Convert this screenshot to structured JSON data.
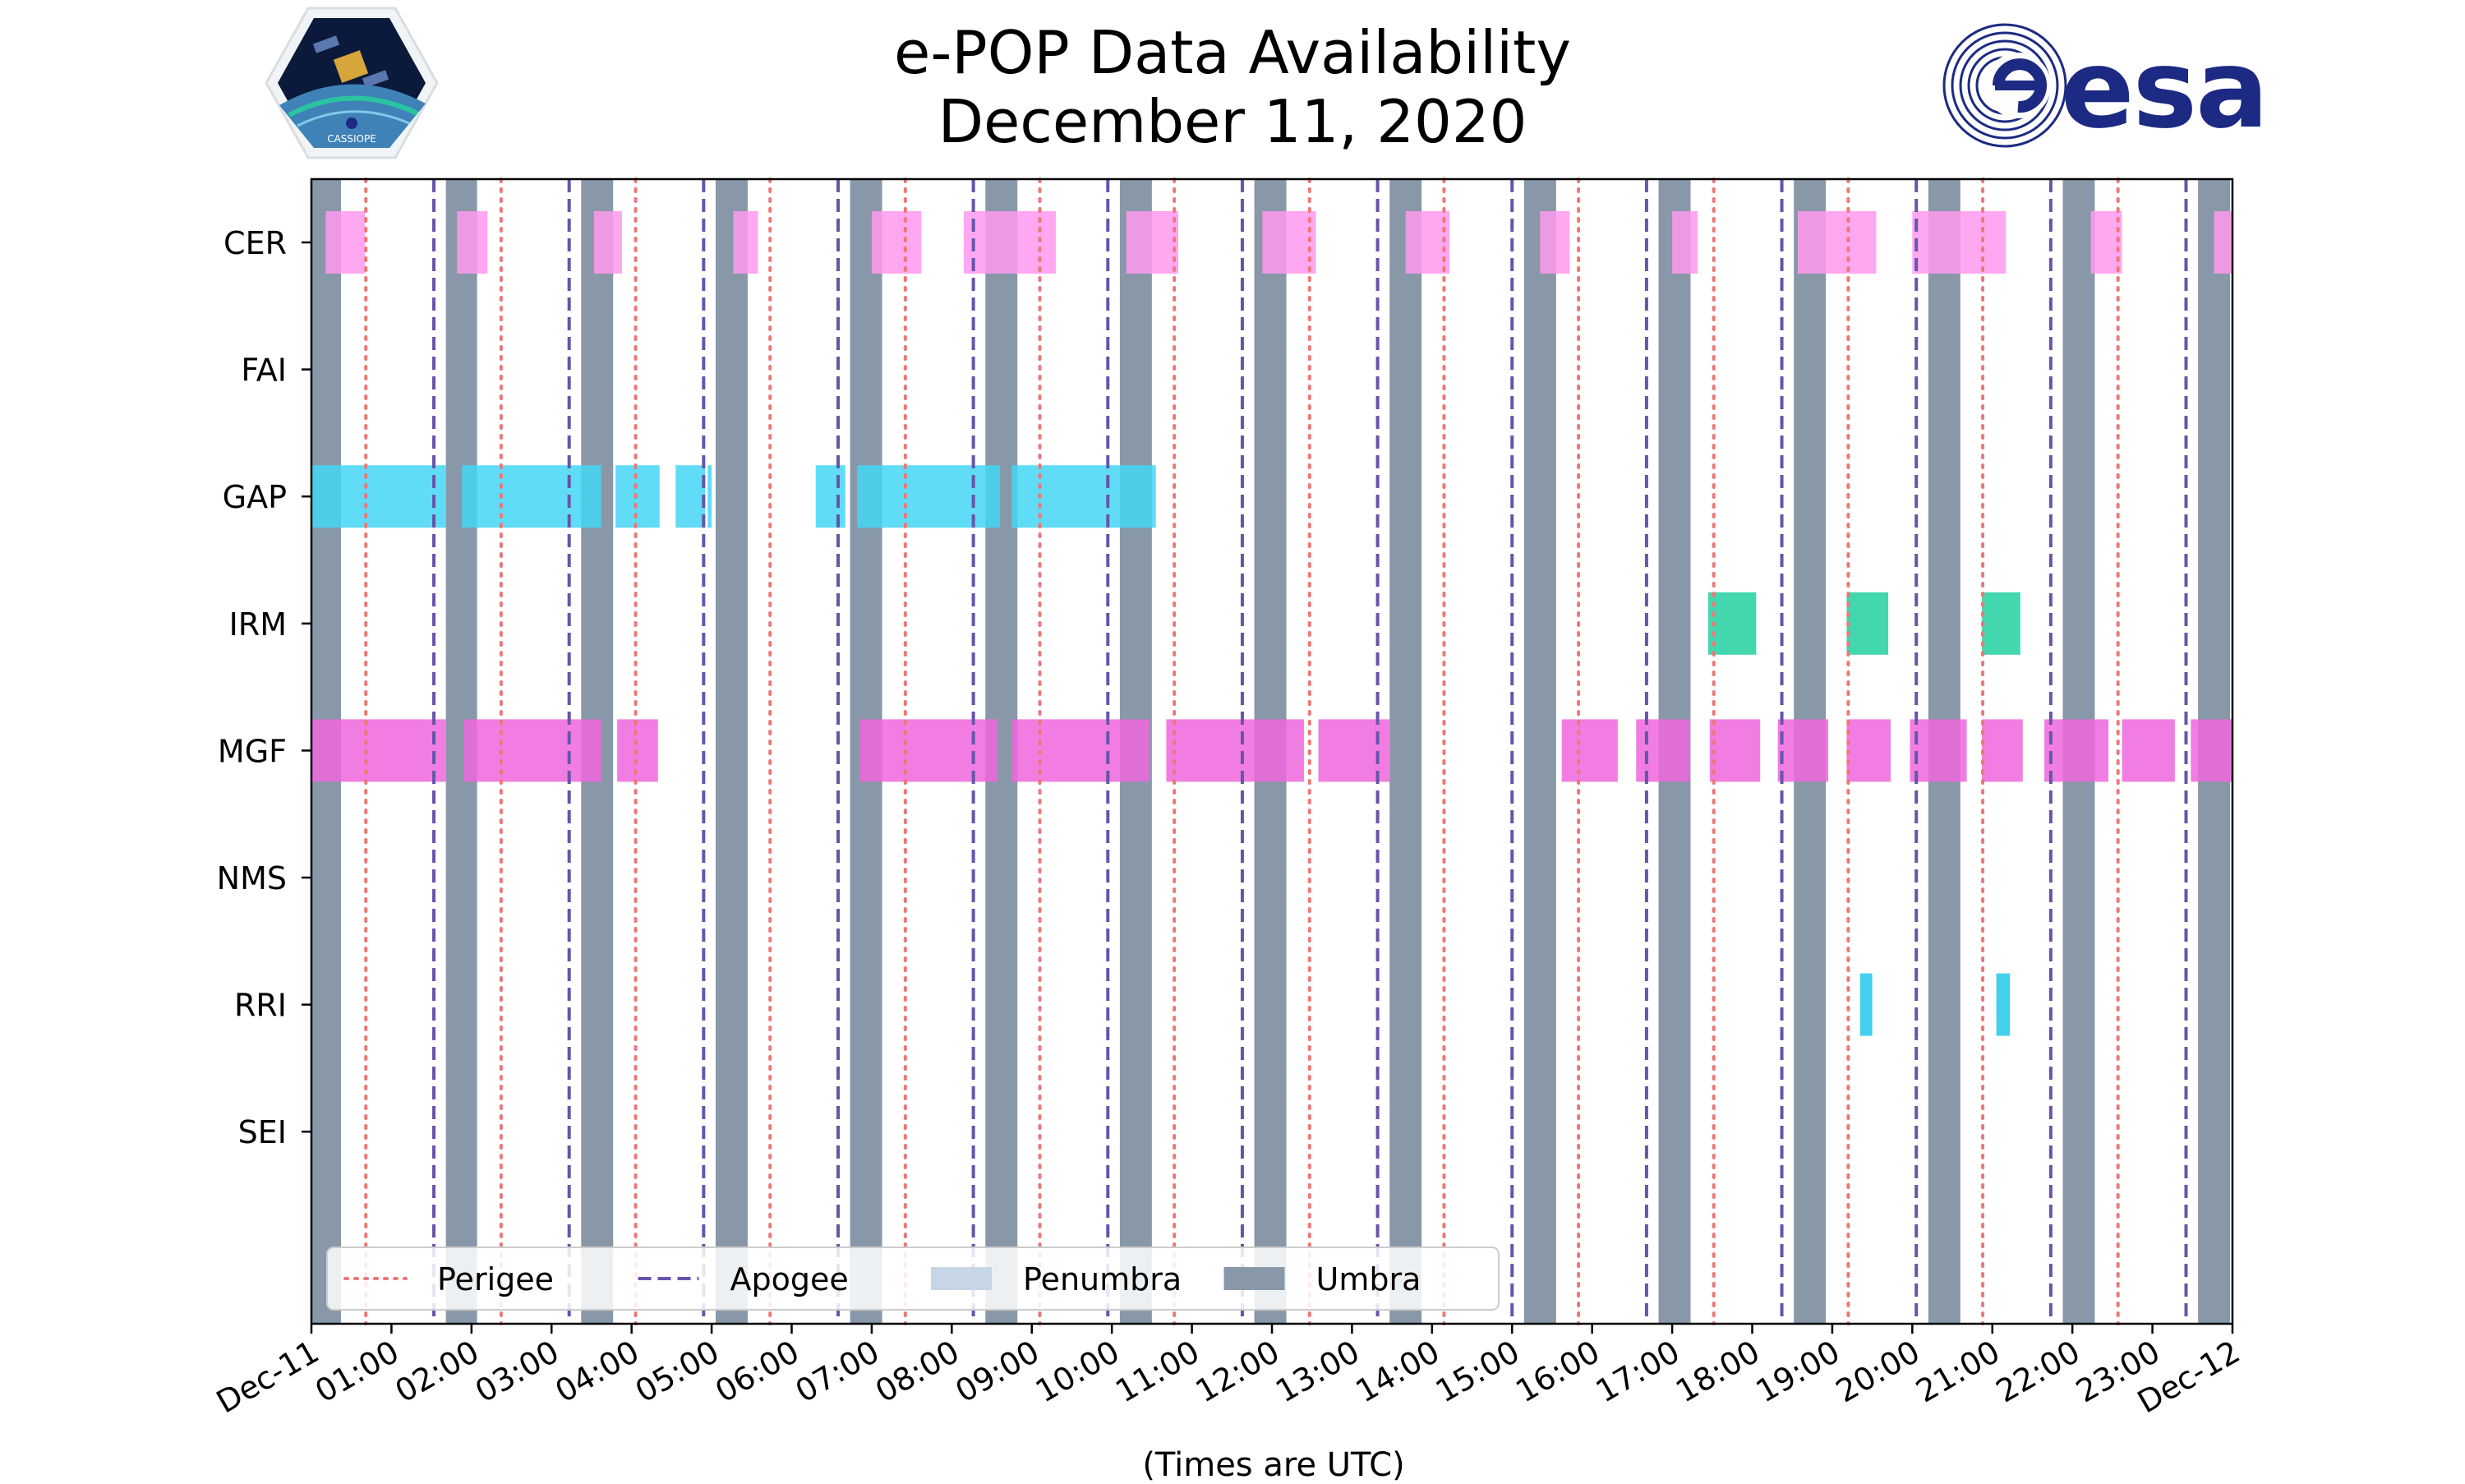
{
  "header": {
    "title_line1": "e-POP Data Availability",
    "title_line2": "December 11, 2020"
  },
  "logos": {
    "left": {
      "name": "CASSIOPE mission logo",
      "text": "CASSIOPE"
    },
    "right": {
      "name": "ESA logo",
      "text": "esa"
    }
  },
  "chart_data": {
    "type": "timeline",
    "title": "e-POP Data Availability December 11, 2020",
    "xlabel": "(Times are UTC)",
    "xlim_hours": [
      0,
      24
    ],
    "x_tick_labels": [
      "Dec-11",
      "01:00",
      "02:00",
      "03:00",
      "04:00",
      "05:00",
      "06:00",
      "07:00",
      "08:00",
      "09:00",
      "10:00",
      "11:00",
      "12:00",
      "13:00",
      "14:00",
      "15:00",
      "16:00",
      "17:00",
      "18:00",
      "19:00",
      "20:00",
      "21:00",
      "22:00",
      "23:00",
      "Dec-12"
    ],
    "instruments": [
      "CER",
      "FAI",
      "GAP",
      "IRM",
      "MGF",
      "NMS",
      "RRI",
      "SEI"
    ],
    "colors": {
      "CER": "#ff99ee",
      "GAP": "#44d6f5",
      "IRM": "#22d0a0",
      "MGF": "#ee66dd",
      "RRI": "#22c8ec",
      "umbra": "#8898a8",
      "perigee": "#ee7777",
      "apogee": "#6655aa",
      "penumbra": "#c6d6e6"
    },
    "umbra_hours": [
      [
        0,
        0.37
      ],
      [
        1.68,
        2.07
      ],
      [
        3.37,
        3.77
      ],
      [
        5.05,
        5.45
      ],
      [
        6.73,
        7.13
      ],
      [
        8.42,
        8.82
      ],
      [
        10.1,
        10.5
      ],
      [
        11.78,
        12.18
      ],
      [
        13.47,
        13.87
      ],
      [
        15.15,
        15.55
      ],
      [
        16.83,
        17.23
      ],
      [
        18.52,
        18.92
      ],
      [
        20.2,
        20.6
      ],
      [
        21.88,
        22.28
      ],
      [
        23.57,
        23.97
      ]
    ],
    "perigee_hours": [
      0.68,
      2.37,
      4.05,
      5.73,
      7.42,
      9.1,
      10.78,
      12.47,
      14.15,
      15.83,
      17.52,
      19.2,
      20.88,
      22.57
    ],
    "apogee_hours": [
      1.53,
      3.22,
      4.9,
      6.58,
      8.27,
      9.95,
      11.63,
      13.32,
      15.0,
      16.68,
      18.37,
      20.05,
      21.73,
      23.42
    ],
    "bars": {
      "CER": [
        [
          0.18,
          0.67
        ],
        [
          1.82,
          2.2
        ],
        [
          3.53,
          3.88
        ],
        [
          5.27,
          5.58
        ],
        [
          7.0,
          7.62
        ],
        [
          8.15,
          9.3
        ],
        [
          10.18,
          10.83
        ],
        [
          11.88,
          12.55
        ],
        [
          13.67,
          14.22
        ],
        [
          15.35,
          15.72
        ],
        [
          17.0,
          17.32
        ],
        [
          18.57,
          19.55
        ],
        [
          20.0,
          21.17
        ],
        [
          22.23,
          22.62
        ],
        [
          23.77,
          24.0
        ]
      ],
      "FAI": [],
      "GAP": [
        [
          0.0,
          1.68
        ],
        [
          1.88,
          3.62
        ],
        [
          3.8,
          4.35
        ],
        [
          4.55,
          4.92
        ],
        [
          4.95,
          5.0
        ],
        [
          6.3,
          6.67
        ],
        [
          6.82,
          8.6
        ],
        [
          8.75,
          10.55
        ]
      ],
      "IRM": [
        [
          17.45,
          18.05
        ],
        [
          19.18,
          19.7
        ],
        [
          20.87,
          21.35
        ]
      ],
      "MGF": [
        [
          0.0,
          1.68
        ],
        [
          1.9,
          3.62
        ],
        [
          3.82,
          4.33
        ],
        [
          6.85,
          8.57
        ],
        [
          8.75,
          10.47
        ],
        [
          10.68,
          12.4
        ],
        [
          12.58,
          13.47
        ],
        [
          15.62,
          16.32
        ],
        [
          16.55,
          17.22
        ],
        [
          17.47,
          18.1
        ],
        [
          18.32,
          18.95
        ],
        [
          19.18,
          19.73
        ],
        [
          19.97,
          20.68
        ],
        [
          20.87,
          21.38
        ],
        [
          21.65,
          22.45
        ],
        [
          22.62,
          23.28
        ],
        [
          23.48,
          24.0
        ]
      ],
      "NMS": [],
      "RRI": [
        [
          19.35,
          19.5
        ],
        [
          21.05,
          21.22
        ]
      ],
      "SEI": []
    },
    "legend": {
      "placement": "lower-left",
      "entries": [
        "Perigee",
        "Apogee",
        "Penumbra",
        "Umbra"
      ]
    }
  }
}
